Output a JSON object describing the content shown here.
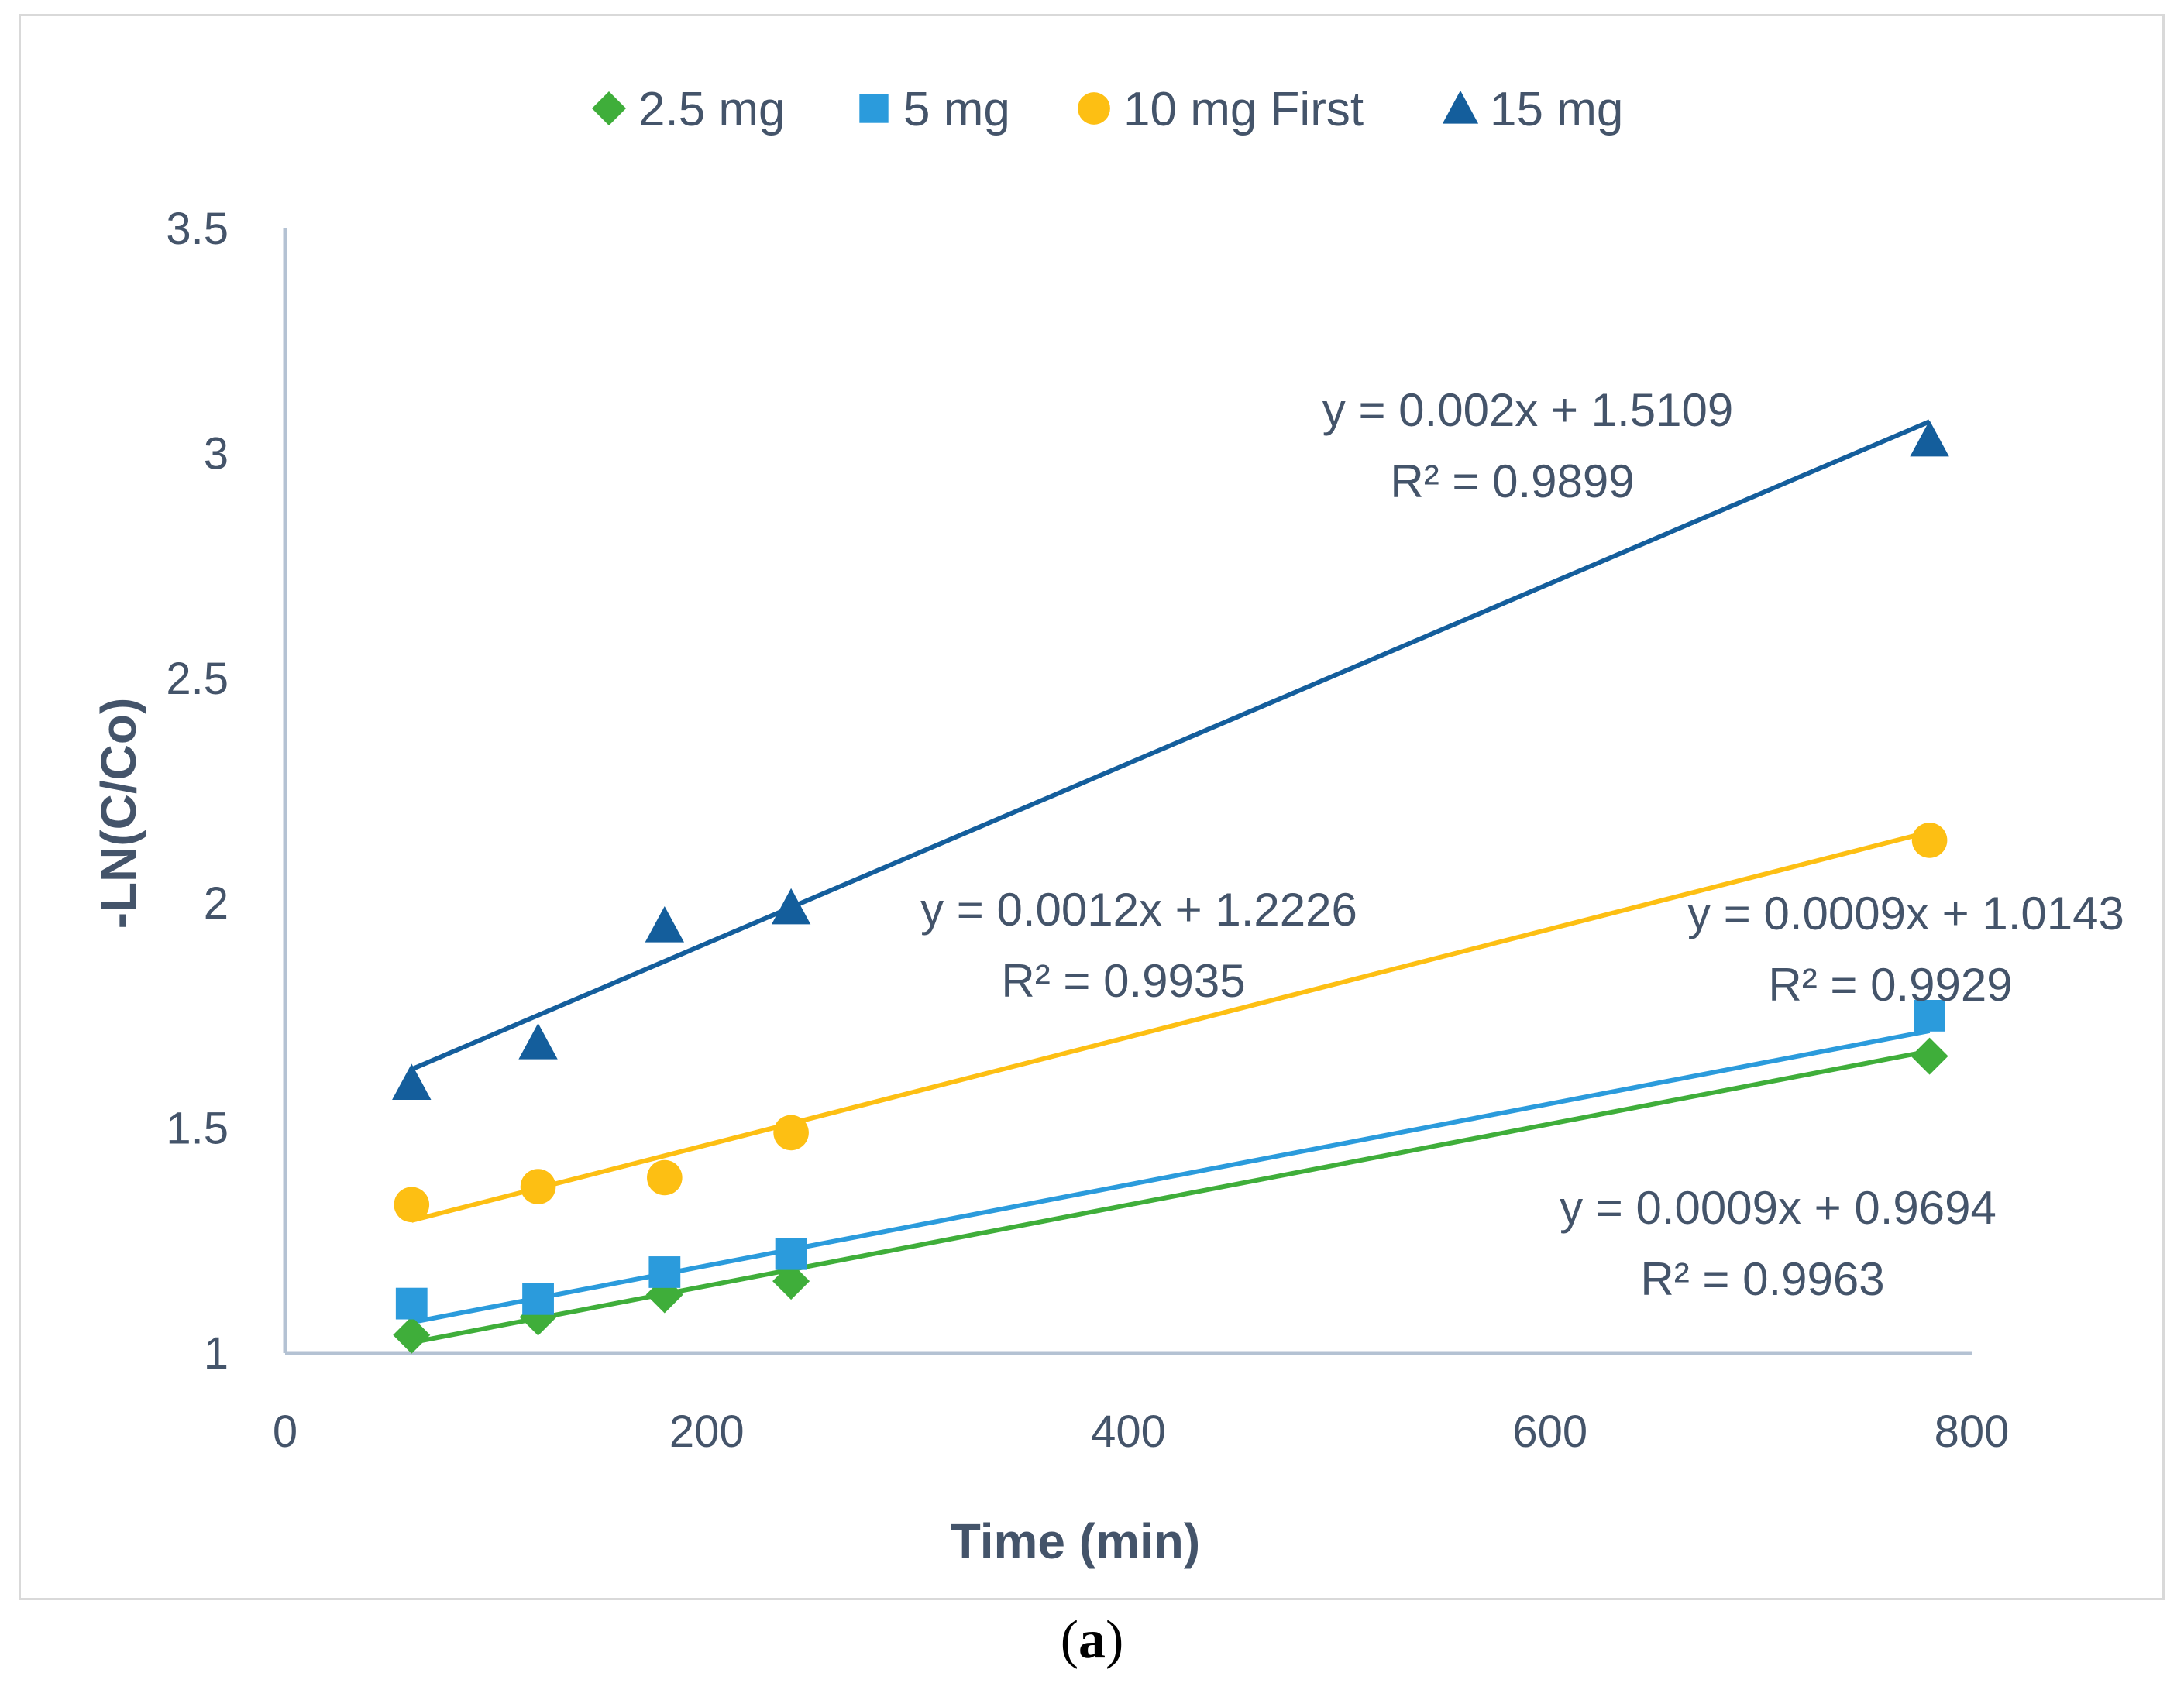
{
  "caption": {
    "open": "(",
    "letter": "a",
    "close": ")"
  },
  "chart_data": {
    "type": "scatter",
    "xlabel": "Time (min)",
    "ylabel": "-LN(C/Co)",
    "xlim": [
      0,
      800
    ],
    "ylim": [
      1,
      3.5
    ],
    "xticks": [
      "0",
      "200",
      "400",
      "600",
      "800"
    ],
    "yticks": [
      "1",
      "1.5",
      "2",
      "2.5",
      "3",
      "3.5"
    ],
    "legend_position": "top",
    "series": [
      {
        "name": "2.5 mg",
        "marker": "diamond",
        "color": "#3fae3a",
        "x": [
          60,
          120,
          180,
          240,
          780
        ],
        "y": [
          1.04,
          1.08,
          1.13,
          1.16,
          1.66
        ],
        "trendline": {
          "slope": 0.0009,
          "intercept": 0.9694,
          "equation": "y = 0.0009x + 0.9694",
          "r2": "R² = 0.9963"
        }
      },
      {
        "name": "5 mg",
        "marker": "square",
        "color": "#2b9bdc",
        "x": [
          60,
          120,
          180,
          240,
          780
        ],
        "y": [
          1.11,
          1.12,
          1.18,
          1.22,
          1.75
        ],
        "trendline": {
          "slope": 0.0009,
          "intercept": 1.0143,
          "equation": "y = 0.0009x + 1.0143",
          "r2": "R² = 0.9929"
        }
      },
      {
        "name": "10 mg First",
        "marker": "circle",
        "color": "#fdbf13",
        "x": [
          60,
          120,
          180,
          240,
          780
        ],
        "y": [
          1.33,
          1.37,
          1.39,
          1.49,
          2.14
        ],
        "trendline": {
          "slope": 0.0012,
          "intercept": 1.2226,
          "equation": "y = 0.0012x + 1.2226",
          "r2": "R² = 0.9935"
        }
      },
      {
        "name": "15 mg",
        "marker": "triangle",
        "color": "#145e9c",
        "x": [
          60,
          120,
          180,
          240,
          780
        ],
        "y": [
          1.6,
          1.69,
          1.95,
          1.99,
          3.03
        ],
        "trendline": {
          "slope": 0.002,
          "intercept": 1.5109,
          "equation": "y = 0.002x + 1.5109",
          "r2": "R² = 0.9899"
        }
      }
    ]
  }
}
